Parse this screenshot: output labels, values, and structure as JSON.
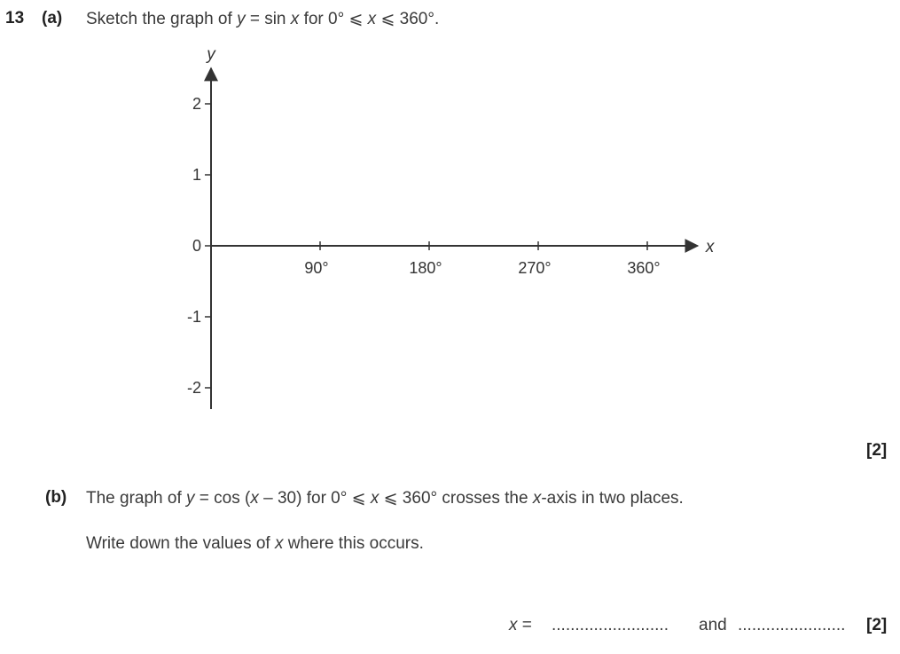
{
  "question": {
    "number": "13",
    "part_a": {
      "label": "(a)",
      "text_prefix": "Sketch the graph of ",
      "var_y": "y",
      "equals": " = sin ",
      "var_x": "x",
      "range_prefix": " for 0° ⩽ ",
      "var_x2": "x",
      "range_suffix": " ⩽ 360°.",
      "marks": "[2]"
    },
    "part_b": {
      "label": "(b)",
      "line1_prefix": "The graph of ",
      "var_y": "y",
      "line1_func": " = cos (",
      "var_x": "x",
      "line1_func_end": " – 30) for 0° ⩽ ",
      "var_x2": "x",
      "line1_range_end": " ⩽ 360° crosses the ",
      "var_x3": "x",
      "line1_end": "-axis in two places.",
      "line2_prefix": "Write down the values of ",
      "var_x4": "x",
      "line2_end": " where this occurs.",
      "answer_var": "x",
      "answer_eq": " =",
      "answer_dots1": ".........................",
      "answer_and": "and",
      "answer_dots2": ".......................",
      "marks": "[2]"
    }
  },
  "chart_data": {
    "type": "line",
    "series": [],
    "xlabel": "x",
    "ylabel": "y",
    "x_ticks": [
      90,
      180,
      270,
      360
    ],
    "x_tick_labels": [
      "90°",
      "180°",
      "270°",
      "360°"
    ],
    "y_ticks": [
      2,
      1,
      0,
      -1,
      -2
    ],
    "y_tick_labels": [
      "2",
      "1",
      "0",
      "-1",
      "-2"
    ],
    "xlim": [
      0,
      400
    ],
    "ylim": [
      -2.3,
      2.4
    ],
    "grid": false
  }
}
